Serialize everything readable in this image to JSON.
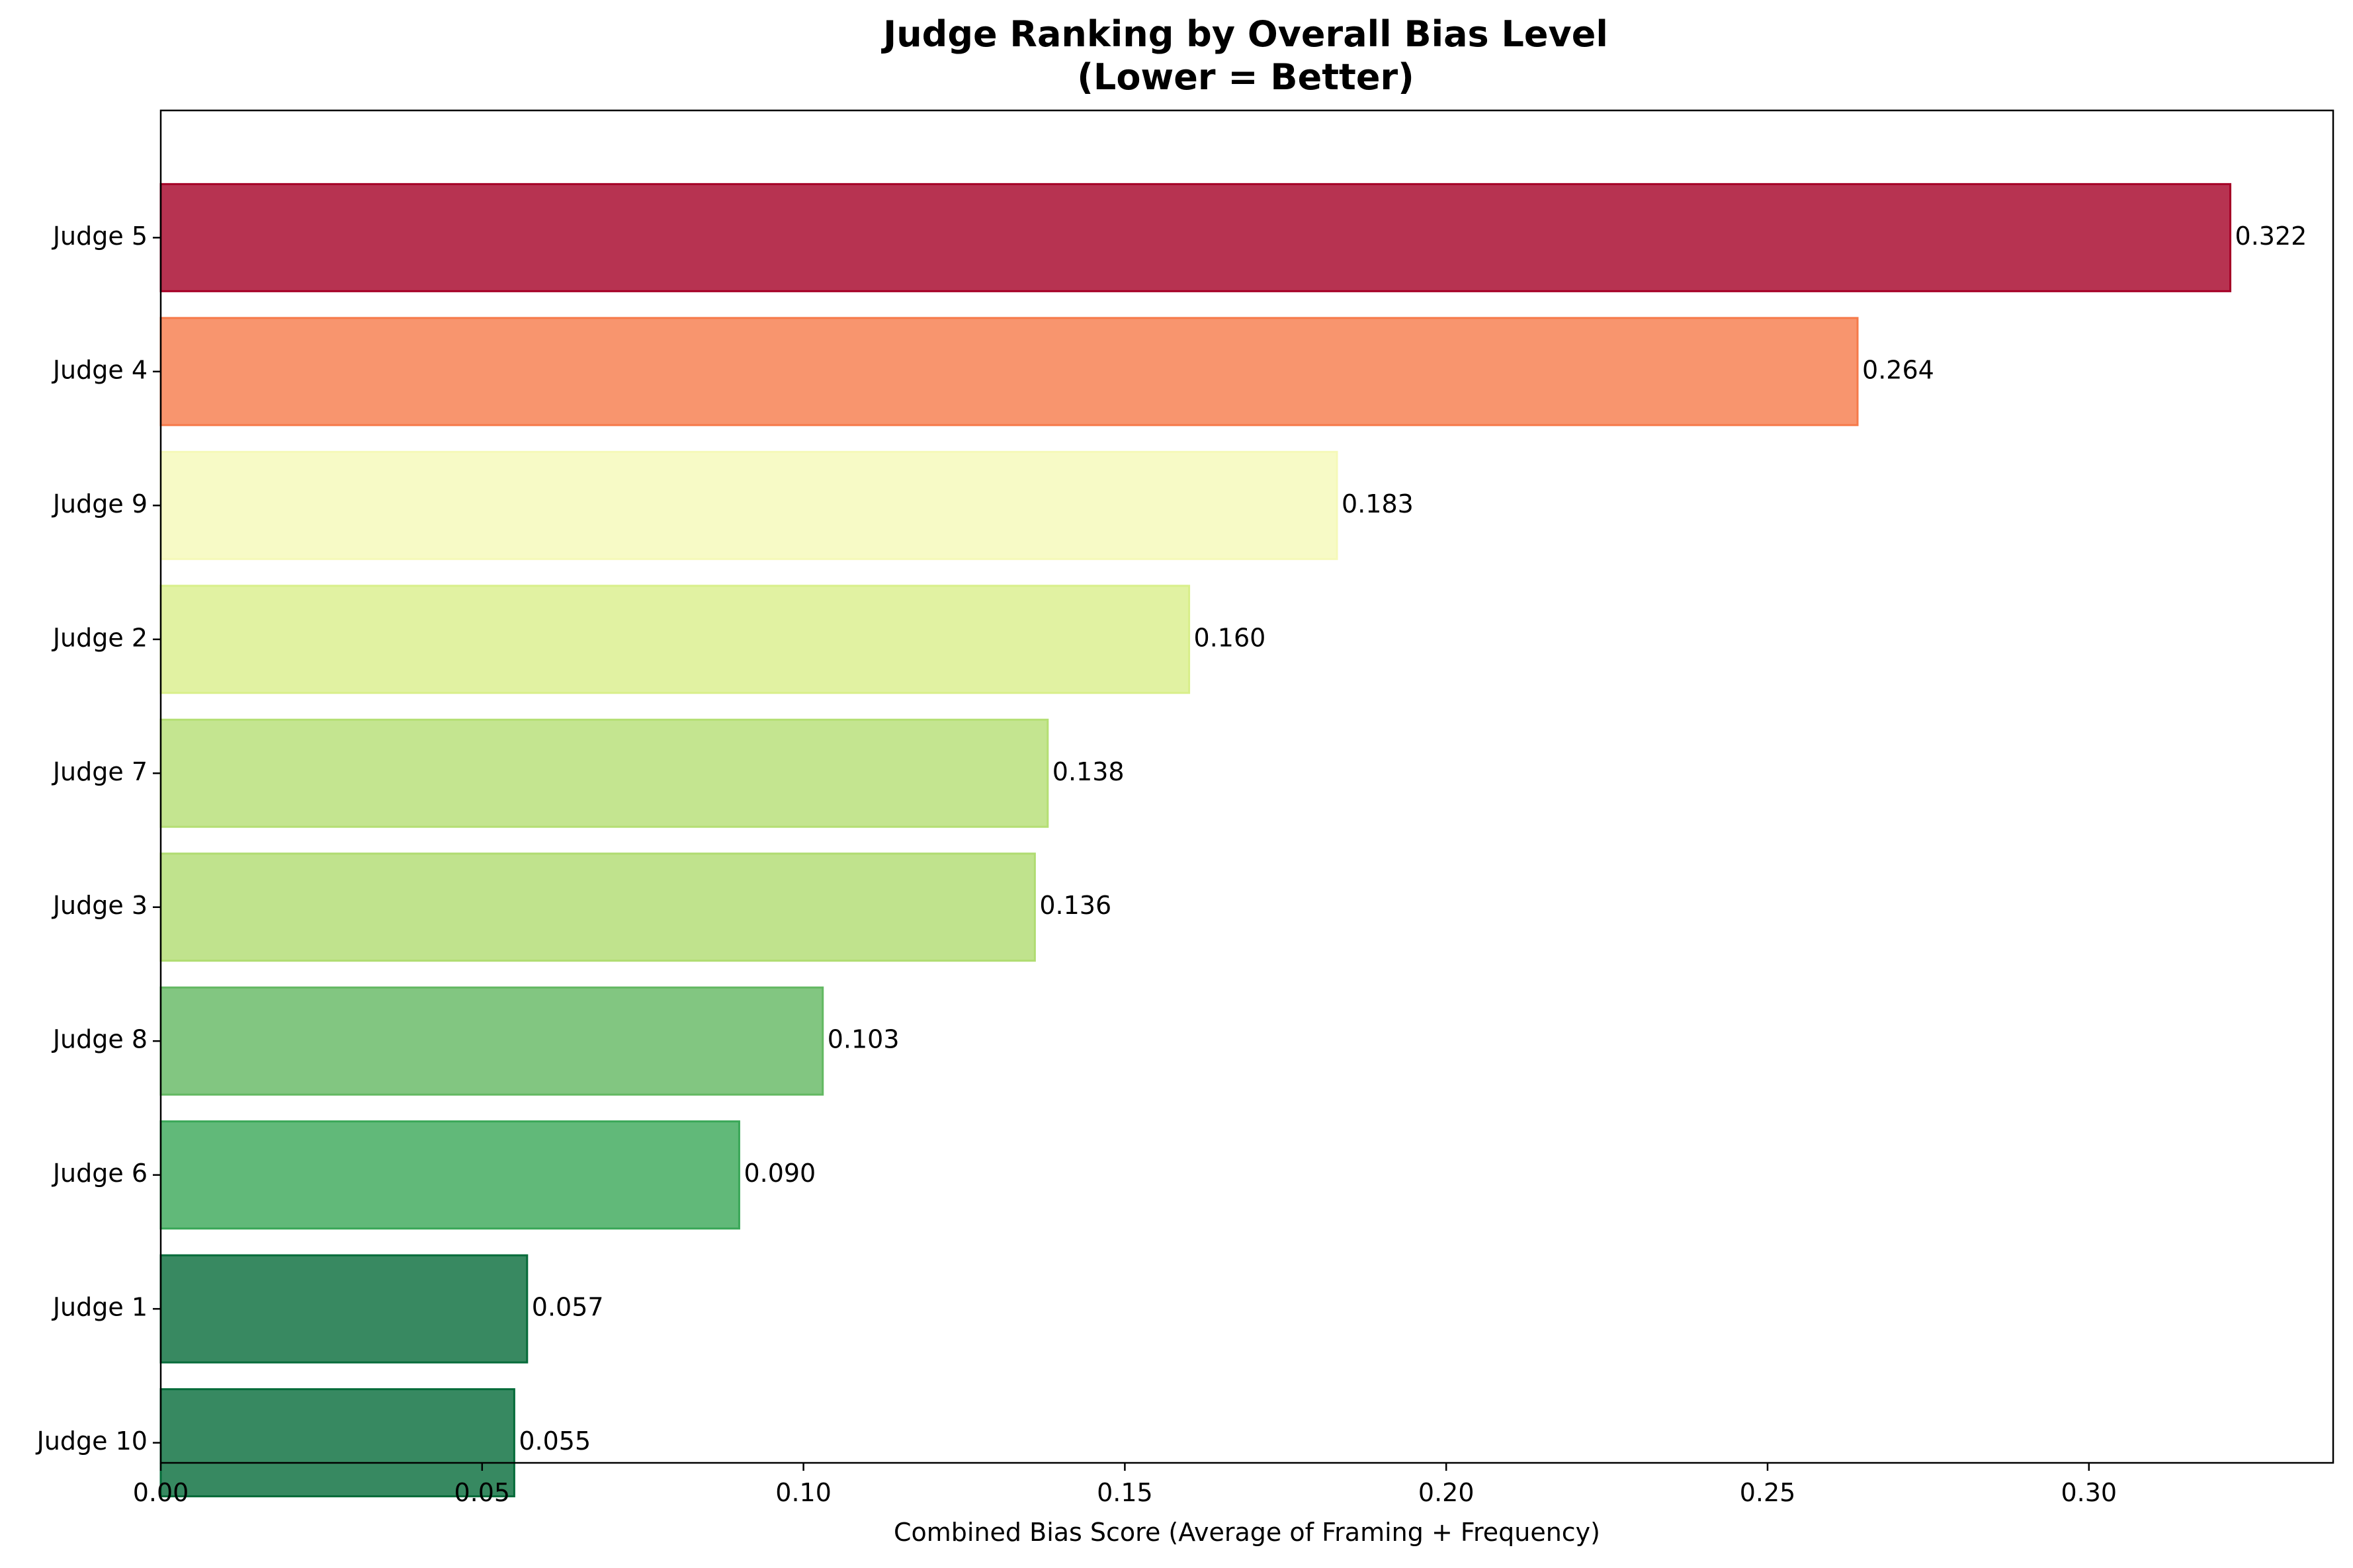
{
  "chart_data": {
    "type": "bar",
    "orientation": "horizontal",
    "title": "Judge Ranking by Overall Bias Level",
    "subtitle": "(Lower = Better)",
    "xlabel": "Combined Bias Score (Average of Framing + Frequency)",
    "ylabel": "",
    "xlim": [
      0,
      0.338
    ],
    "x_ticks": [
      0.0,
      0.05,
      0.1,
      0.15,
      0.2,
      0.25,
      0.3
    ],
    "x_tick_labels": [
      "0.00",
      "0.05",
      "0.10",
      "0.15",
      "0.20",
      "0.25",
      "0.30"
    ],
    "grid": false,
    "legend": "none",
    "categories": [
      "Judge 5",
      "Judge 4",
      "Judge 9",
      "Judge 2",
      "Judge 7",
      "Judge 3",
      "Judge 8",
      "Judge 6",
      "Judge 1",
      "Judge 10"
    ],
    "values": [
      0.322,
      0.264,
      0.183,
      0.16,
      0.138,
      0.136,
      0.103,
      0.09,
      0.057,
      0.055
    ],
    "value_labels": [
      "0.322",
      "0.264",
      "0.183",
      "0.160",
      "0.138",
      "0.136",
      "0.103",
      "0.090",
      "0.057",
      "0.055"
    ],
    "colors": [
      "#a50026",
      "#f67a4a",
      "#f5f9b8",
      "#d9ef8b",
      "#b5df74",
      "#b0dc71",
      "#63b862",
      "#3aa758",
      "#066b3a",
      "#056b39"
    ]
  }
}
